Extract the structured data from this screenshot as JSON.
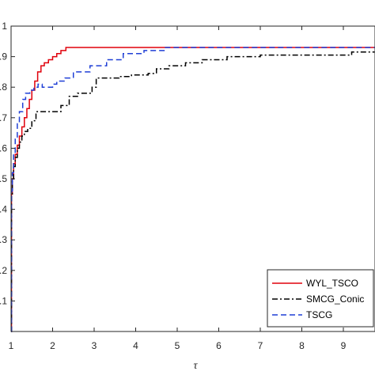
{
  "chart_data": {
    "type": "line",
    "title": "",
    "xlabel": "τ",
    "ylabel": "",
    "xlim": [
      1,
      9.75
    ],
    "ylim": [
      0,
      1
    ],
    "x_ticks": [
      "1",
      "2",
      "3",
      "4",
      "5",
      "6",
      "7",
      "8",
      "9"
    ],
    "y_ticks": [
      ".1",
      ".2",
      ".3",
      ".4",
      ".5",
      ".6",
      ".7",
      ".8",
      ".9",
      "1"
    ],
    "grid": false,
    "legend_position": "bottom-right",
    "series": [
      {
        "name": "WYL_TSCO",
        "color": "#e0000b",
        "dash": "solid",
        "x": [
          1,
          1.01,
          1.03,
          1.06,
          1.1,
          1.15,
          1.2,
          1.26,
          1.32,
          1.38,
          1.44,
          1.5,
          1.57,
          1.64,
          1.72,
          1.8,
          1.9,
          2.0,
          2.1,
          2.2,
          2.32,
          9.75
        ],
        "y": [
          0,
          0.45,
          0.5,
          0.55,
          0.58,
          0.61,
          0.64,
          0.67,
          0.7,
          0.73,
          0.76,
          0.79,
          0.82,
          0.85,
          0.87,
          0.88,
          0.89,
          0.9,
          0.91,
          0.92,
          0.93,
          0.93
        ]
      },
      {
        "name": "SMCG_Conic",
        "color": "#000000",
        "dash": "dashdot",
        "x": [
          1,
          1.01,
          1.03,
          1.06,
          1.1,
          1.15,
          1.2,
          1.26,
          1.32,
          1.4,
          1.5,
          1.6,
          2.0,
          2.2,
          2.4,
          2.6,
          2.75,
          2.95,
          3.05,
          3.6,
          3.9,
          4.3,
          4.5,
          4.8,
          5.2,
          5.6,
          6.2,
          7.0,
          9.2,
          9.75
        ],
        "y": [
          0,
          0.45,
          0.5,
          0.54,
          0.57,
          0.6,
          0.62,
          0.64,
          0.655,
          0.665,
          0.69,
          0.72,
          0.72,
          0.74,
          0.77,
          0.78,
          0.78,
          0.8,
          0.83,
          0.835,
          0.84,
          0.845,
          0.86,
          0.87,
          0.88,
          0.89,
          0.9,
          0.905,
          0.915,
          0.915
        ]
      },
      {
        "name": "TSCG",
        "color": "#1f3fd6",
        "dash": "dashed",
        "x": [
          1,
          1.01,
          1.03,
          1.06,
          1.1,
          1.15,
          1.2,
          1.28,
          1.35,
          1.45,
          1.55,
          1.65,
          1.75,
          2.0,
          2.1,
          2.3,
          2.5,
          2.9,
          3.3,
          3.7,
          4.2,
          4.7,
          9.75
        ],
        "y": [
          0,
          0.46,
          0.52,
          0.58,
          0.63,
          0.68,
          0.72,
          0.76,
          0.78,
          0.79,
          0.8,
          0.81,
          0.8,
          0.81,
          0.82,
          0.83,
          0.85,
          0.87,
          0.89,
          0.91,
          0.92,
          0.93,
          0.93
        ]
      }
    ]
  }
}
